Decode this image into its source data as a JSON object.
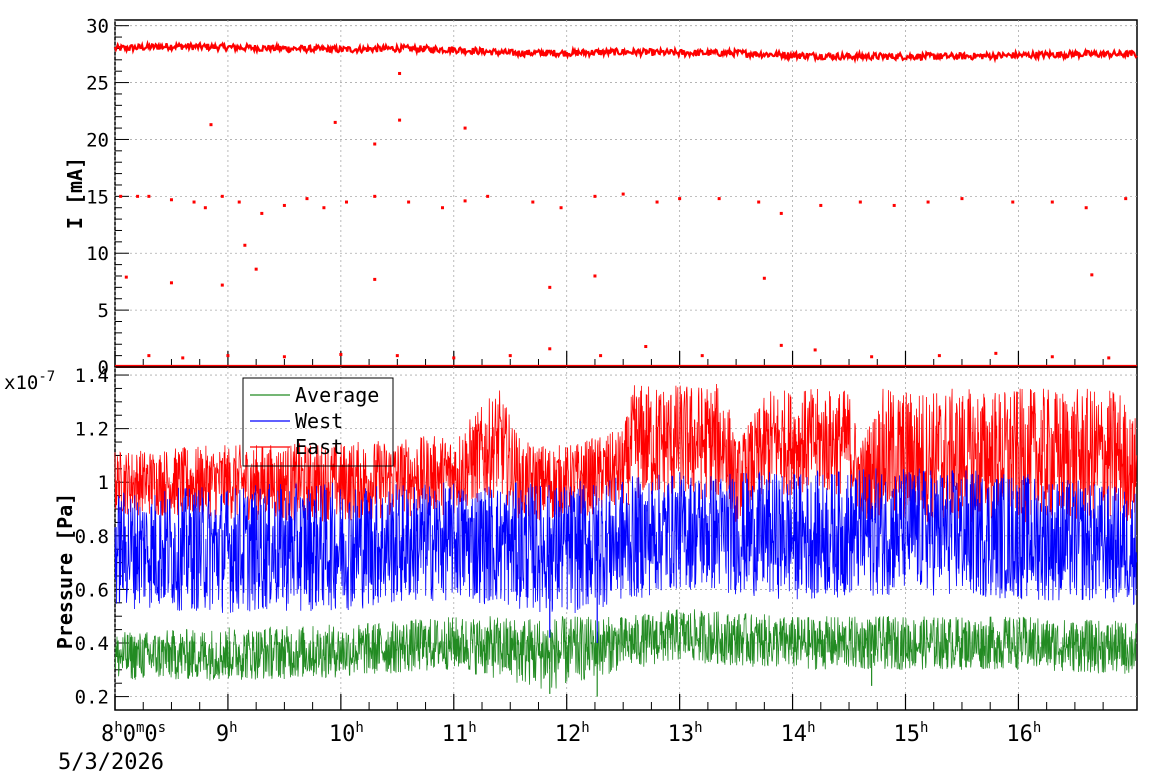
{
  "chart_data": [
    {
      "type": "scatter",
      "ylabel": "I [mA]",
      "ylim": [
        0,
        30.5
      ],
      "xlim_hours": [
        8.0,
        17.05
      ],
      "y_ticks": [
        "0",
        "5",
        "10",
        "15",
        "20",
        "25",
        "30"
      ],
      "grid": true,
      "series": [
        {
          "color": "#ff0000",
          "values_description": "current trend",
          "trend": [
            [
              8.0,
              28.0
            ],
            [
              8.5,
              28.2
            ],
            [
              9.0,
              28.1
            ],
            [
              9.5,
              28.0
            ],
            [
              10.0,
              27.9
            ],
            [
              10.5,
              28.0
            ],
            [
              11.0,
              27.9
            ],
            [
              11.5,
              27.6
            ],
            [
              12.0,
              27.6
            ],
            [
              12.5,
              27.7
            ],
            [
              13.0,
              27.6
            ],
            [
              13.5,
              27.6
            ],
            [
              14.0,
              27.4
            ],
            [
              14.5,
              27.3
            ],
            [
              15.0,
              27.3
            ],
            [
              15.5,
              27.3
            ],
            [
              16.0,
              27.4
            ],
            [
              16.5,
              27.5
            ],
            [
              17.0,
              27.5
            ]
          ],
          "outliers": [
            [
              8.05,
              15.0
            ],
            [
              8.2,
              15.0
            ],
            [
              8.3,
              15.0
            ],
            [
              8.5,
              14.7
            ],
            [
              8.7,
              14.5
            ],
            [
              8.8,
              14.0
            ],
            [
              8.95,
              15.0
            ],
            [
              9.1,
              14.5
            ],
            [
              9.3,
              13.5
            ],
            [
              9.5,
              14.2
            ],
            [
              9.7,
              14.8
            ],
            [
              9.85,
              14.0
            ],
            [
              10.05,
              14.5
            ],
            [
              10.3,
              15.0
            ],
            [
              10.6,
              14.5
            ],
            [
              10.9,
              14.0
            ],
            [
              11.1,
              14.6
            ],
            [
              11.3,
              15.0
            ],
            [
              11.7,
              14.5
            ],
            [
              11.95,
              14.0
            ],
            [
              12.25,
              15.0
            ],
            [
              12.5,
              15.2
            ],
            [
              12.8,
              14.5
            ],
            [
              13.0,
              14.8
            ],
            [
              13.35,
              14.8
            ],
            [
              13.7,
              14.5
            ],
            [
              13.9,
              13.5
            ],
            [
              14.25,
              14.2
            ],
            [
              14.6,
              14.5
            ],
            [
              14.9,
              14.2
            ],
            [
              15.2,
              14.5
            ],
            [
              15.5,
              14.8
            ],
            [
              15.95,
              14.5
            ],
            [
              16.3,
              14.5
            ],
            [
              16.6,
              14.0
            ],
            [
              16.95,
              14.8
            ],
            [
              8.85,
              21.3
            ],
            [
              9.95,
              21.5
            ],
            [
              10.3,
              19.6
            ],
            [
              10.52,
              21.7
            ],
            [
              11.1,
              21.0
            ],
            [
              10.52,
              25.8
            ],
            [
              9.15,
              10.7
            ],
            [
              9.25,
              8.6
            ],
            [
              10.3,
              7.7
            ],
            [
              12.25,
              8.0
            ],
            [
              13.75,
              7.8
            ],
            [
              16.65,
              8.1
            ],
            [
              8.1,
              7.9
            ],
            [
              8.5,
              7.4
            ],
            [
              8.95,
              7.2
            ],
            [
              11.85,
              7.0
            ],
            [
              8.3,
              1.0
            ],
            [
              8.6,
              0.8
            ],
            [
              9.0,
              1.0
            ],
            [
              9.5,
              0.9
            ],
            [
              10.0,
              1.1
            ],
            [
              10.5,
              1.0
            ],
            [
              11.0,
              0.8
            ],
            [
              11.5,
              1.0
            ],
            [
              11.85,
              1.6
            ],
            [
              12.3,
              1.0
            ],
            [
              12.7,
              1.8
            ],
            [
              13.2,
              1.0
            ],
            [
              13.9,
              1.9
            ],
            [
              14.2,
              1.5
            ],
            [
              14.7,
              0.9
            ],
            [
              15.3,
              1.0
            ],
            [
              15.8,
              1.2
            ],
            [
              16.3,
              0.9
            ],
            [
              16.8,
              0.8
            ]
          ]
        }
      ]
    },
    {
      "type": "line",
      "ylabel": "Pressure [Pa]",
      "exponent_label": "x10",
      "exponent_power": "-7",
      "ylim": [
        0.15,
        1.43
      ],
      "xlim_hours": [
        8.0,
        17.05
      ],
      "y_ticks": [
        "0.2",
        "0.4",
        "0.6",
        "0.8",
        "1",
        "1.2",
        "1.4"
      ],
      "grid": true,
      "legend_position": "top-left",
      "series": [
        {
          "name": "Average",
          "color": "#228b22",
          "band": [
            [
              8.0,
              0.35,
              0.09
            ],
            [
              9.0,
              0.36,
              0.1
            ],
            [
              10.0,
              0.37,
              0.1
            ],
            [
              11.0,
              0.4,
              0.1
            ],
            [
              11.85,
              0.36,
              0.14
            ],
            [
              12.5,
              0.4,
              0.1
            ],
            [
              13.0,
              0.43,
              0.1
            ],
            [
              14.0,
              0.4,
              0.1
            ],
            [
              15.0,
              0.4,
              0.1
            ],
            [
              16.0,
              0.4,
              0.1
            ],
            [
              17.0,
              0.38,
              0.1
            ]
          ]
        },
        {
          "name": "West",
          "color": "#0000ff",
          "band": [
            [
              8.0,
              0.75,
              0.22
            ],
            [
              9.0,
              0.75,
              0.24
            ],
            [
              10.0,
              0.76,
              0.24
            ],
            [
              11.0,
              0.78,
              0.22
            ],
            [
              12.0,
              0.75,
              0.25
            ],
            [
              13.0,
              0.82,
              0.22
            ],
            [
              14.0,
              0.8,
              0.24
            ],
            [
              15.0,
              0.82,
              0.24
            ],
            [
              16.0,
              0.8,
              0.24
            ],
            [
              17.0,
              0.76,
              0.22
            ]
          ]
        },
        {
          "name": "East",
          "color": "#ff0000",
          "band": [
            [
              8.0,
              1.0,
              0.12
            ],
            [
              9.0,
              1.0,
              0.14
            ],
            [
              10.0,
              1.0,
              0.15
            ],
            [
              11.0,
              1.03,
              0.15
            ],
            [
              11.4,
              1.15,
              0.2
            ],
            [
              11.6,
              1.0,
              0.15
            ],
            [
              12.0,
              1.0,
              0.14
            ],
            [
              12.5,
              1.05,
              0.15
            ],
            [
              12.6,
              1.15,
              0.22
            ],
            [
              13.4,
              1.15,
              0.22
            ],
            [
              13.5,
              1.0,
              0.15
            ],
            [
              13.8,
              1.15,
              0.2
            ],
            [
              14.5,
              1.15,
              0.2
            ],
            [
              14.6,
              1.0,
              0.15
            ],
            [
              14.8,
              1.1,
              0.25
            ],
            [
              16.9,
              1.1,
              0.25
            ],
            [
              17.0,
              1.05,
              0.2
            ]
          ]
        }
      ],
      "dips": [
        [
          11.85,
          0.42
        ],
        [
          12.27,
          0.4
        ],
        [
          11.85,
          0.21
        ],
        [
          12.27,
          0.2
        ],
        [
          14.7,
          0.24
        ]
      ],
      "x_tick_hours": [
        8,
        9,
        10,
        11,
        12,
        13,
        14,
        15,
        16
      ],
      "x_labels": [
        {
          "hour": "8",
          "sup_h": "h",
          "rest": "0",
          "sup_m": "m",
          "rest2": "0",
          "sup_s": "s"
        },
        {
          "hour": "9",
          "sup_h": "h"
        },
        {
          "hour": "10",
          "sup_h": "h"
        },
        {
          "hour": "11",
          "sup_h": "h"
        },
        {
          "hour": "12",
          "sup_h": "h"
        },
        {
          "hour": "13",
          "sup_h": "h"
        },
        {
          "hour": "14",
          "sup_h": "h"
        },
        {
          "hour": "15",
          "sup_h": "h"
        },
        {
          "hour": "16",
          "sup_h": "h"
        }
      ],
      "date_label": "5/3/2026"
    }
  ]
}
